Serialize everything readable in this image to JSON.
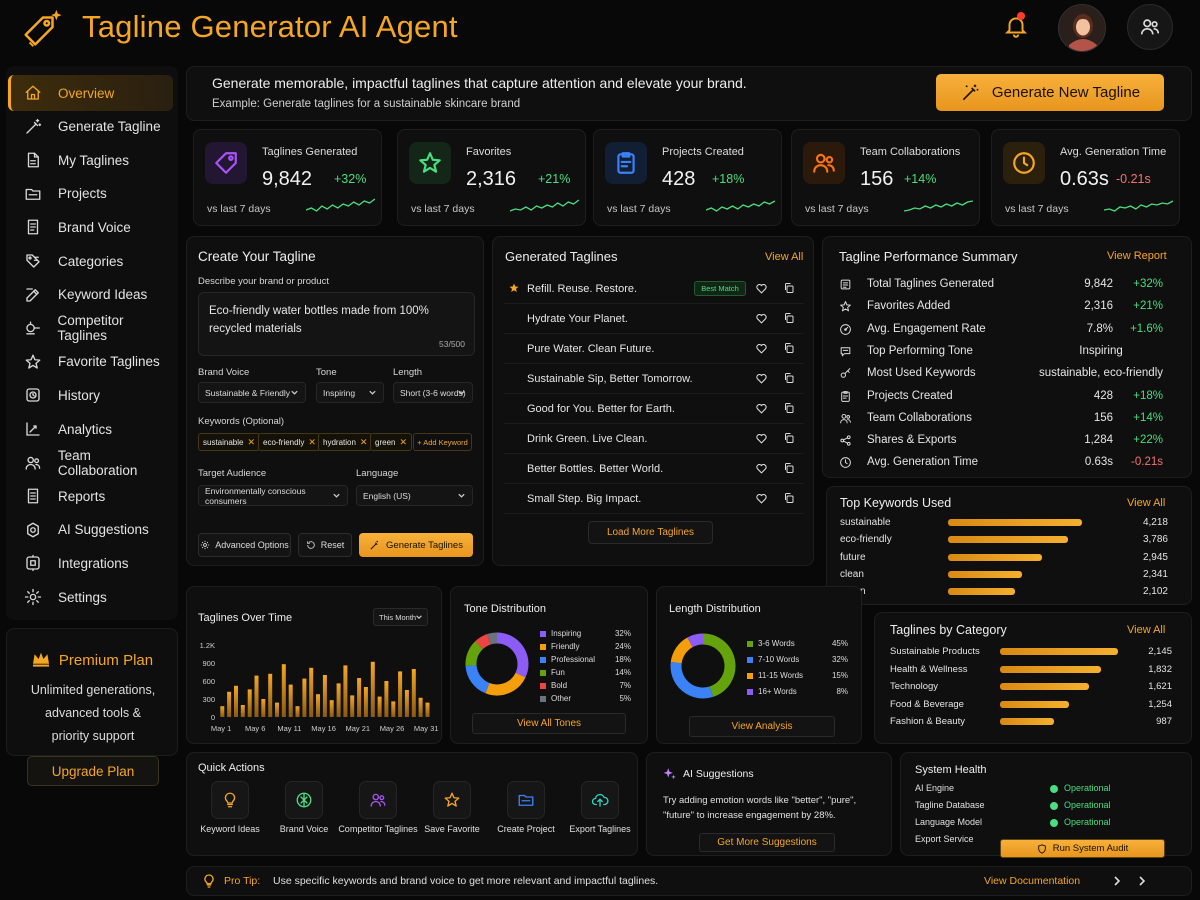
{
  "app": {
    "title": "Tagline Generator AI Agent"
  },
  "sidebar": {
    "items": [
      {
        "label": "Overview",
        "icon": "home-icon",
        "active": true
      },
      {
        "label": "Generate Tagline",
        "icon": "wand-icon"
      },
      {
        "label": "My Taglines",
        "icon": "file-icon"
      },
      {
        "label": "Projects",
        "icon": "folder-icon"
      },
      {
        "label": "Brand Voice",
        "icon": "file-text-icon"
      },
      {
        "label": "Categories",
        "icon": "tags-icon"
      },
      {
        "label": "Keyword Ideas",
        "icon": "pencil-icon"
      },
      {
        "label": "Competitor Taglines",
        "icon": "compare-icon"
      },
      {
        "label": "Favorite Taglines",
        "icon": "star-icon"
      },
      {
        "label": "History",
        "icon": "history-icon"
      },
      {
        "label": "Analytics",
        "icon": "analytics-icon"
      },
      {
        "label": "Team Collaboration",
        "icon": "users-icon"
      },
      {
        "label": "Reports",
        "icon": "report-icon"
      },
      {
        "label": "AI Suggestions",
        "icon": "ai-icon"
      },
      {
        "label": "Integrations",
        "icon": "plug-icon"
      },
      {
        "label": "Settings",
        "icon": "gear-icon"
      }
    ]
  },
  "premium": {
    "title": "Premium Plan",
    "desc_lines": [
      "Unlimited generations,",
      "advanced tools &",
      "priority support"
    ],
    "button": "Upgrade Plan"
  },
  "banner": {
    "title": "Generate memorable, impactful taglines that capture attention and elevate your brand.",
    "example": "Example: Generate taglines for a sustainable skincare brand",
    "button": "Generate New Tagline"
  },
  "stats": [
    {
      "label": "Taglines Generated",
      "value": "9,842",
      "delta": "+32%",
      "sub": "vs last 7 days",
      "icon": "tag-icon",
      "color": "#a855f7",
      "bg": "#221633"
    },
    {
      "label": "Favorites",
      "value": "2,316",
      "delta": "+21%",
      "sub": "vs last 7 days",
      "icon": "star-icon",
      "color": "#4ade80",
      "bg": "#132617"
    },
    {
      "label": "Projects Created",
      "value": "428",
      "delta": "+18%",
      "sub": "vs last 7 days",
      "icon": "clipboard-icon",
      "color": "#3b82f6",
      "bg": "#121e33"
    },
    {
      "label": "Team Collaborations",
      "value": "156",
      "delta": "+14%",
      "sub": "vs last 7 days",
      "icon": "users-icon",
      "color": "#f97316",
      "bg": "#2b1a0c"
    },
    {
      "label": "Avg. Generation Time",
      "value": "0.63s",
      "delta": "-0.21s",
      "sub": "vs last 7 days",
      "icon": "clock-icon",
      "color": "#f5a623",
      "bg": "#2a200c",
      "negative": true
    }
  ],
  "create": {
    "title": "Create Your Tagline",
    "desc_label": "Describe your brand or product",
    "desc_value": "Eco-friendly water bottles made from 100% recycled materials",
    "desc_count": "53/500",
    "brand_voice_label": "Brand Voice",
    "brand_voice_value": "Sustainable & Friendly",
    "tone_label": "Tone",
    "tone_value": "Inspiring",
    "length_label": "Length",
    "length_value": "Short (3-6 words)",
    "keywords_label": "Keywords (Optional)",
    "keywords": [
      "sustainable",
      "eco-friendly",
      "hydration",
      "green"
    ],
    "add_keyword": "+ Add Keyword",
    "audience_label": "Target Audience",
    "audience_value": "Environmentally conscious consumers",
    "language_label": "Language",
    "language_value": "English (US)",
    "advanced": "Advanced Options",
    "reset": "Reset",
    "generate": "Generate Taglines"
  },
  "generated": {
    "title": "Generated Taglines",
    "view_all": "View All",
    "best_badge": "Best Match",
    "items": [
      "Refill. Reuse. Restore.",
      "Hydrate Your Planet.",
      "Pure Water. Clean Future.",
      "Sustainable Sip, Better Tomorrow.",
      "Good for You. Better for Earth.",
      "Drink Green. Live Clean.",
      "Better Bottles. Better World.",
      "Small Step. Big Impact."
    ],
    "load_more": "Load More Taglines"
  },
  "performance": {
    "title": "Tagline Performance Summary",
    "link": "View Report",
    "rows": [
      {
        "label": "Total Taglines Generated",
        "value": "9,842",
        "delta": "+32%",
        "icon": "doc-icon"
      },
      {
        "label": "Favorites Added",
        "value": "2,316",
        "delta": "+21%",
        "icon": "star-icon"
      },
      {
        "label": "Avg. Engagement Rate",
        "value": "7.8%",
        "delta": "+1.6%",
        "icon": "gauge-icon"
      },
      {
        "label": "Top Performing Tone",
        "value": "Inspiring",
        "icon": "chat-icon",
        "center": true
      },
      {
        "label": "Most Used Keywords",
        "value": "sustainable, eco-friendly",
        "icon": "key-icon",
        "center": true
      },
      {
        "label": "Projects Created",
        "value": "428",
        "delta": "+18%",
        "icon": "clipboard-icon"
      },
      {
        "label": "Team Collaborations",
        "value": "156",
        "delta": "+14%",
        "icon": "users-icon"
      },
      {
        "label": "Shares & Exports",
        "value": "1,284",
        "delta": "+22%",
        "icon": "share-icon"
      },
      {
        "label": "Avg. Generation Time",
        "value": "0.63s",
        "delta": "-0.21s",
        "icon": "clock-icon",
        "negative": true
      }
    ]
  },
  "keywords": {
    "title": "Top Keywords Used",
    "link": "View All",
    "items": [
      {
        "label": "sustainable",
        "value": 4218,
        "display": "4,218"
      },
      {
        "label": "eco-friendly",
        "value": 3786,
        "display": "3,786"
      },
      {
        "label": "future",
        "value": 2945,
        "display": "2,945"
      },
      {
        "label": "clean",
        "value": 2341,
        "display": "2,341"
      },
      {
        "label": "green",
        "value": 2102,
        "display": "2,102"
      }
    ]
  },
  "over_time": {
    "title": "Taglines Over Time",
    "period": "This Month",
    "yticks": [
      "1.2K",
      "900",
      "600",
      "300",
      "0"
    ],
    "xticks": [
      "May 1",
      "May 6",
      "May 11",
      "May 16",
      "May 21",
      "May 26",
      "May 31"
    ]
  },
  "tone": {
    "title": "Tone Distribution",
    "button": "View All Tones",
    "items": [
      {
        "label": "Inspiring",
        "pct": "32%",
        "value": 32,
        "color": "#8b5cf6"
      },
      {
        "label": "Friendly",
        "pct": "24%",
        "value": 24,
        "color": "#f59e0b"
      },
      {
        "label": "Professional",
        "pct": "18%",
        "value": 18,
        "color": "#3b82f6"
      },
      {
        "label": "Fun",
        "pct": "14%",
        "value": 14,
        "color": "#65a30d"
      },
      {
        "label": "Bold",
        "pct": "7%",
        "value": 7,
        "color": "#ef4444"
      },
      {
        "label": "Other",
        "pct": "5%",
        "value": 5,
        "color": "#6b7280"
      }
    ]
  },
  "length_dist": {
    "title": "Length Distribution",
    "button": "View Analysis",
    "items": [
      {
        "label": "3-6 Words",
        "pct": "45%",
        "value": 45,
        "color": "#65a30d"
      },
      {
        "label": "7-10 Words",
        "pct": "32%",
        "value": 32,
        "color": "#3b82f6"
      },
      {
        "label": "11-15 Words",
        "pct": "15%",
        "value": 15,
        "color": "#f59e0b"
      },
      {
        "label": "16+ Words",
        "pct": "8%",
        "value": 8,
        "color": "#8b5cf6"
      }
    ]
  },
  "category": {
    "title": "Taglines by Category",
    "link": "View All",
    "items": [
      {
        "label": "Sustainable Products",
        "value": 2145,
        "display": "2,145"
      },
      {
        "label": "Health & Wellness",
        "value": 1832,
        "display": "1,832"
      },
      {
        "label": "Technology",
        "value": 1621,
        "display": "1,621"
      },
      {
        "label": "Food & Beverage",
        "value": 1254,
        "display": "1,254"
      },
      {
        "label": "Fashion & Beauty",
        "value": 987,
        "display": "987"
      }
    ]
  },
  "quick": {
    "title": "Quick Actions",
    "items": [
      {
        "label": "Keyword Ideas",
        "icon": "bulb-icon",
        "color": "#f5a623"
      },
      {
        "label": "Brand Voice",
        "icon": "compass-icon",
        "color": "#4ade80"
      },
      {
        "label": "Competitor Taglines",
        "icon": "users-icon",
        "color": "#a855f7"
      },
      {
        "label": "Save Favorite",
        "icon": "star-icon",
        "color": "#f5a623"
      },
      {
        "label": "Create Project",
        "icon": "folder-icon",
        "color": "#3b82f6"
      },
      {
        "label": "Export Taglines",
        "icon": "upload-cloud-icon",
        "color": "#2dd4bf"
      }
    ]
  },
  "ai_suggestions": {
    "title": "AI Suggestions",
    "text": "Try adding emotion words like \"better\", \"pure\", \"future\" to increase engagement by 28%.",
    "button": "Get More Suggestions"
  },
  "health": {
    "title": "System Health",
    "rows": [
      {
        "label": "AI Engine",
        "status": "Operational"
      },
      {
        "label": "Tagline Database",
        "status": "Operational"
      },
      {
        "label": "Language Model",
        "status": "Operational"
      },
      {
        "label": "Export Service",
        "status": ""
      }
    ],
    "button": "Run System Audit"
  },
  "protip": {
    "label": "Pro Tip:",
    "text": "Use specific keywords and brand voice to get more relevant and impactful taglines.",
    "link": "View Documentation"
  },
  "chart_data": [
    {
      "type": "bar",
      "title": "Taglines Over Time",
      "xlabel": "",
      "ylabel": "",
      "ylim": [
        0,
        1200
      ],
      "x": [
        "May 1",
        "May 2",
        "May 3",
        "May 4",
        "May 5",
        "May 6",
        "May 7",
        "May 8",
        "May 9",
        "May 10",
        "May 11",
        "May 12",
        "May 13",
        "May 14",
        "May 15",
        "May 16",
        "May 17",
        "May 18",
        "May 19",
        "May 20",
        "May 21",
        "May 22",
        "May 23",
        "May 24",
        "May 25",
        "May 26",
        "May 27",
        "May 28",
        "May 29",
        "May 30",
        "May 31"
      ],
      "values": [
        180,
        420,
        520,
        200,
        460,
        690,
        300,
        720,
        240,
        880,
        540,
        180,
        640,
        820,
        380,
        700,
        280,
        560,
        860,
        360,
        650,
        500,
        920,
        340,
        600,
        260,
        760,
        450,
        800,
        320,
        240
      ],
      "grid": false
    },
    {
      "type": "pie",
      "title": "Tone Distribution",
      "categories": [
        "Inspiring",
        "Friendly",
        "Professional",
        "Fun",
        "Bold",
        "Other"
      ],
      "values": [
        32,
        24,
        18,
        14,
        7,
        5
      ]
    },
    {
      "type": "pie",
      "title": "Length Distribution",
      "categories": [
        "3-6 Words",
        "7-10 Words",
        "11-15 Words",
        "16+ Words"
      ],
      "values": [
        45,
        32,
        15,
        8
      ]
    },
    {
      "type": "bar",
      "title": "Top Keywords Used",
      "categories": [
        "sustainable",
        "eco-friendly",
        "future",
        "clean",
        "green"
      ],
      "values": [
        4218,
        3786,
        2945,
        2341,
        2102
      ]
    },
    {
      "type": "bar",
      "title": "Taglines by Category",
      "categories": [
        "Sustainable Products",
        "Health & Wellness",
        "Technology",
        "Food & Beverage",
        "Fashion & Beauty"
      ],
      "values": [
        2145,
        1832,
        1621,
        1254,
        987
      ]
    }
  ]
}
